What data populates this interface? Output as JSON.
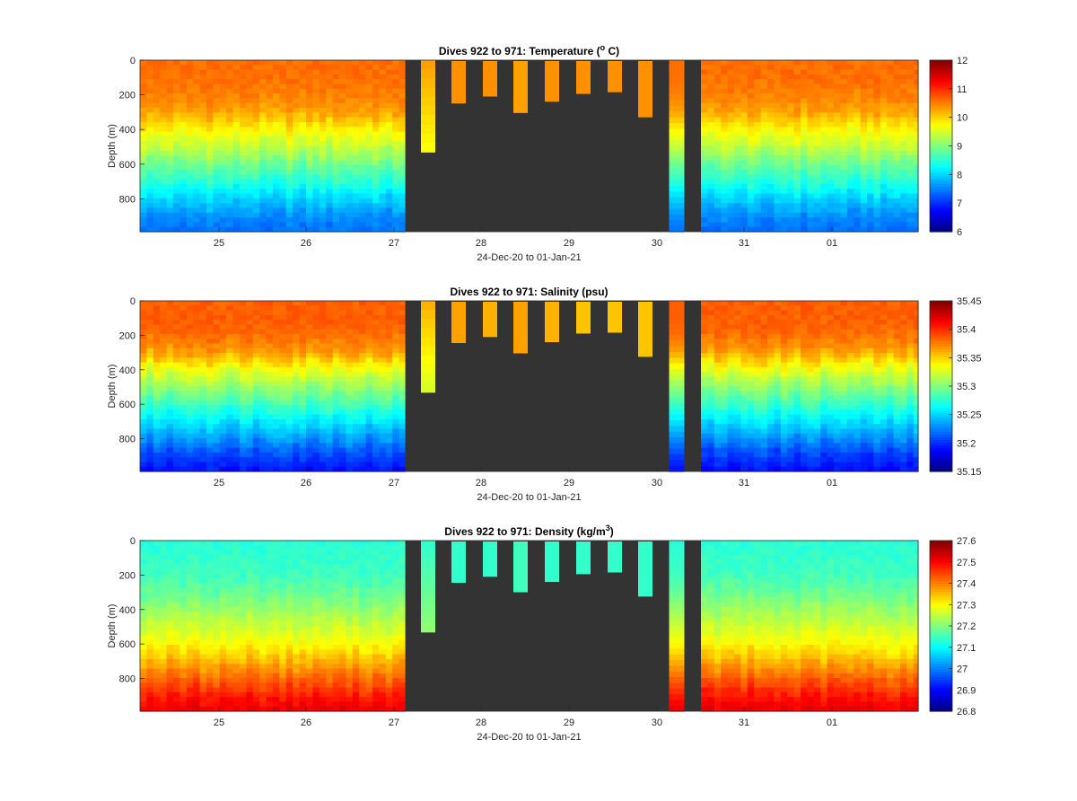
{
  "figure": {
    "background": "#ffffff",
    "nodata_color": "#333333"
  },
  "chart_data": [
    {
      "type": "heatmap",
      "title": "Dives 922 to 971: Temperature (",
      "title_sup": "o",
      "title_tail": " C)",
      "xlabel": "24-Dec-20 to 01-Jan-21",
      "ylabel": "Depth (m)",
      "x_tick_labels": [
        "25",
        "26",
        "27",
        "28",
        "29",
        "30",
        "31",
        "01"
      ],
      "y_tick_labels": [
        "0",
        "200",
        "400",
        "600",
        "800"
      ],
      "ylim": [
        990,
        0
      ],
      "colorbar": {
        "min": 6,
        "max": 12,
        "ticks": [
          "6",
          "7",
          "8",
          "9",
          "10",
          "11",
          "12"
        ]
      },
      "colormap": "jet",
      "profile": {
        "depths": [
          0,
          100,
          200,
          300,
          400,
          500,
          600,
          700,
          800,
          900,
          990
        ],
        "values": [
          10.6,
          10.6,
          10.5,
          10.3,
          9.8,
          9.4,
          8.9,
          8.5,
          8.0,
          7.6,
          7.4
        ]
      },
      "short_dives": {
        "bottoms": [
          530,
          250,
          210,
          305,
          240,
          195,
          185,
          330
        ],
        "values": [
          10.3,
          10.4,
          10.4,
          10.3,
          10.4,
          10.4,
          10.4,
          10.4
        ]
      }
    },
    {
      "type": "heatmap",
      "title": "Dives 922 to 971: Salinity (psu)",
      "title_sup": "",
      "title_tail": "",
      "xlabel": "24-Dec-20 to 01-Jan-21",
      "ylabel": "Depth (m)",
      "x_tick_labels": [
        "25",
        "26",
        "27",
        "28",
        "29",
        "30",
        "31",
        "01"
      ],
      "y_tick_labels": [
        "0",
        "200",
        "400",
        "600",
        "800"
      ],
      "ylim": [
        990,
        0
      ],
      "colorbar": {
        "min": 35.15,
        "max": 35.45,
        "ticks": [
          "35.15",
          "35.2",
          "35.25",
          "35.3",
          "35.35",
          "35.4",
          "35.45"
        ]
      },
      "colormap": "jet",
      "profile": {
        "depths": [
          0,
          100,
          200,
          300,
          400,
          500,
          600,
          700,
          800,
          900,
          990
        ],
        "values": [
          35.385,
          35.385,
          35.38,
          35.365,
          35.33,
          35.305,
          35.28,
          35.255,
          35.23,
          35.205,
          35.19
        ]
      },
      "short_dives": {
        "bottoms": [
          530,
          245,
          210,
          305,
          240,
          190,
          185,
          325
        ],
        "values": [
          35.36,
          35.365,
          35.36,
          35.365,
          35.36,
          35.355,
          35.355,
          35.355
        ]
      }
    },
    {
      "type": "heatmap",
      "title": "Dives 922 to 971: Density (kg/m",
      "title_sup": "3",
      "title_tail": ")",
      "xlabel": "24-Dec-20 to 01-Jan-21",
      "ylabel": "Depth (m)",
      "x_tick_labels": [
        "25",
        "26",
        "27",
        "28",
        "29",
        "30",
        "31",
        "01"
      ],
      "y_tick_labels": [
        "0",
        "200",
        "400",
        "600",
        "800"
      ],
      "ylim": [
        990,
        0
      ],
      "colorbar": {
        "min": 26.8,
        "max": 27.6,
        "ticks": [
          "26.8",
          "26.9",
          "27",
          "27.1",
          "27.2",
          "27.3",
          "27.4",
          "27.5",
          "27.6"
        ]
      },
      "colormap": "jet",
      "profile": {
        "depths": [
          0,
          100,
          200,
          300,
          400,
          500,
          600,
          700,
          800,
          900,
          990
        ],
        "values": [
          27.13,
          27.14,
          27.15,
          27.18,
          27.22,
          27.26,
          27.3,
          27.36,
          27.42,
          27.48,
          27.52
        ]
      },
      "short_dives": {
        "bottoms": [
          530,
          245,
          210,
          300,
          240,
          195,
          185,
          325
        ],
        "values": [
          27.14,
          27.14,
          27.14,
          27.15,
          27.14,
          27.14,
          27.14,
          27.14
        ]
      }
    }
  ]
}
